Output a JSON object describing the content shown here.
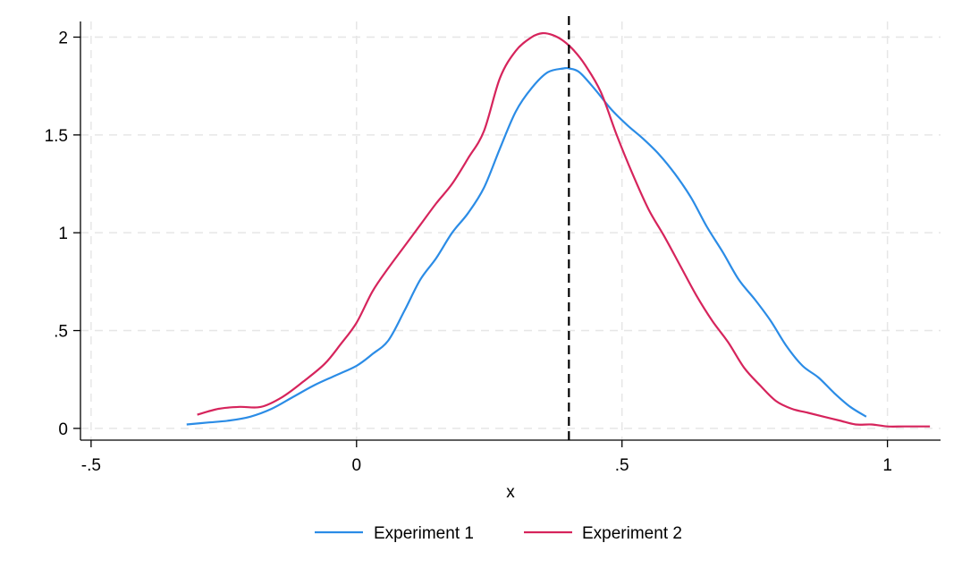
{
  "chart_data": {
    "type": "line",
    "title": "",
    "xlabel": "x",
    "ylabel": "",
    "xlim": [
      -0.52,
      1.1
    ],
    "ylim": [
      -0.06,
      2.08
    ],
    "x_ticks": [
      {
        "value": -0.5,
        "label": "-.5"
      },
      {
        "value": 0,
        "label": "0"
      },
      {
        "value": 0.5,
        "label": ".5"
      },
      {
        "value": 1,
        "label": "1"
      }
    ],
    "y_ticks": [
      {
        "value": 0,
        "label": "0"
      },
      {
        "value": 0.5,
        "label": ".5"
      },
      {
        "value": 1,
        "label": "1"
      },
      {
        "value": 1.5,
        "label": "1.5"
      },
      {
        "value": 2,
        "label": "2"
      }
    ],
    "grid": true,
    "legend": {
      "position": "bottom",
      "columns": 2
    },
    "vline": {
      "x": 0.4,
      "style": "dashed",
      "color": "#000000"
    },
    "series": [
      {
        "name": "Experiment 1",
        "color": "#2b8ce6",
        "x": [
          -0.32,
          -0.28,
          -0.24,
          -0.2,
          -0.16,
          -0.12,
          -0.08,
          -0.04,
          0.0,
          0.03,
          0.06,
          0.09,
          0.12,
          0.15,
          0.18,
          0.21,
          0.24,
          0.27,
          0.3,
          0.33,
          0.36,
          0.39,
          0.4,
          0.42,
          0.45,
          0.48,
          0.51,
          0.54,
          0.57,
          0.6,
          0.63,
          0.66,
          0.69,
          0.72,
          0.75,
          0.78,
          0.81,
          0.84,
          0.87,
          0.9,
          0.93,
          0.96
        ],
        "y": [
          0.02,
          0.03,
          0.04,
          0.06,
          0.1,
          0.16,
          0.22,
          0.27,
          0.32,
          0.38,
          0.45,
          0.6,
          0.76,
          0.87,
          1.0,
          1.1,
          1.23,
          1.43,
          1.62,
          1.74,
          1.82,
          1.84,
          1.84,
          1.82,
          1.73,
          1.63,
          1.55,
          1.48,
          1.4,
          1.3,
          1.18,
          1.03,
          0.9,
          0.76,
          0.66,
          0.55,
          0.42,
          0.32,
          0.26,
          0.18,
          0.11,
          0.06
        ]
      },
      {
        "name": "Experiment 2",
        "color": "#d6245c",
        "x": [
          -0.3,
          -0.26,
          -0.22,
          -0.18,
          -0.14,
          -0.1,
          -0.06,
          -0.03,
          0.0,
          0.03,
          0.06,
          0.09,
          0.12,
          0.15,
          0.18,
          0.21,
          0.24,
          0.27,
          0.3,
          0.33,
          0.35,
          0.37,
          0.39,
          0.41,
          0.43,
          0.46,
          0.49,
          0.52,
          0.55,
          0.58,
          0.61,
          0.64,
          0.67,
          0.7,
          0.73,
          0.76,
          0.79,
          0.82,
          0.85,
          0.88,
          0.91,
          0.94,
          0.97,
          1.0,
          1.03,
          1.06,
          1.08
        ],
        "y": [
          0.07,
          0.1,
          0.11,
          0.11,
          0.16,
          0.24,
          0.33,
          0.43,
          0.54,
          0.7,
          0.82,
          0.93,
          1.04,
          1.15,
          1.25,
          1.38,
          1.52,
          1.79,
          1.93,
          2.0,
          2.02,
          2.01,
          1.98,
          1.93,
          1.86,
          1.72,
          1.5,
          1.3,
          1.12,
          0.98,
          0.83,
          0.68,
          0.55,
          0.44,
          0.31,
          0.22,
          0.14,
          0.1,
          0.08,
          0.06,
          0.04,
          0.02,
          0.02,
          0.01,
          0.01,
          0.01,
          0.01
        ]
      }
    ]
  }
}
